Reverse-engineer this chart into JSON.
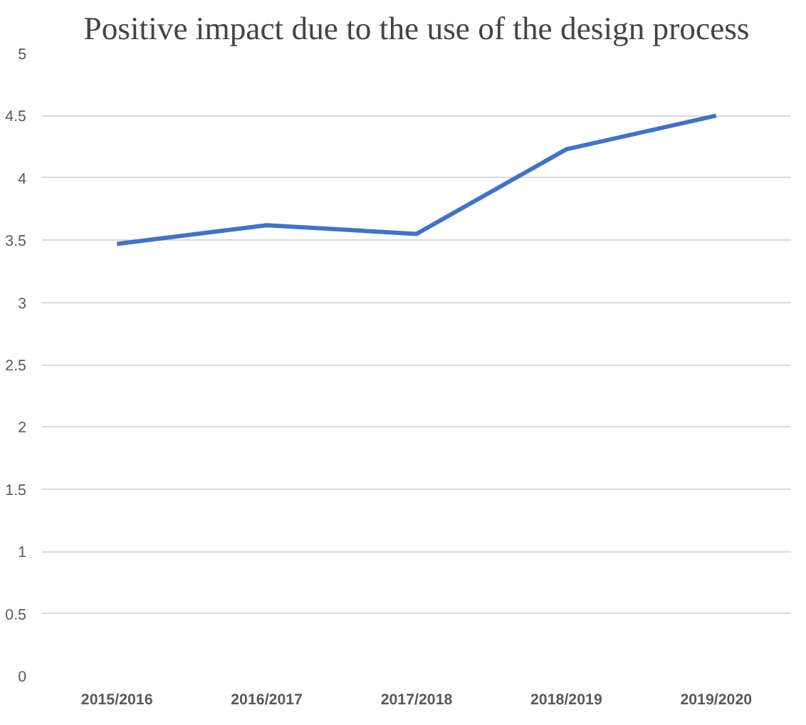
{
  "chart_data": {
    "type": "line",
    "title": "Positive impact due to the use of the design process",
    "categories": [
      "2015/2016",
      "2016/2017",
      "2017/2018",
      "2018/2019",
      "2019/2020"
    ],
    "series": [
      {
        "color": "#4472c4",
        "values": [
          3.47,
          3.62,
          3.55,
          4.23,
          4.5
        ]
      }
    ],
    "ylim": [
      0,
      5
    ],
    "yticks": [
      0,
      0.5,
      1,
      1.5,
      2,
      2.5,
      3,
      3.5,
      4,
      4.5,
      5
    ],
    "grid": "y"
  }
}
